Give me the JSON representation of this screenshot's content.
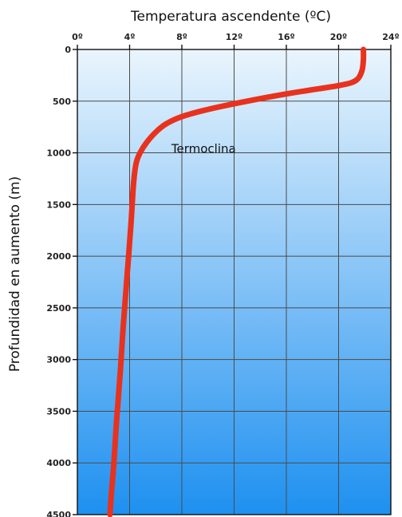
{
  "chart_data": {
    "type": "line",
    "title": "Temperatura ascendente (ºC)",
    "xlabel": "Temperatura ascendente (ºC)",
    "ylabel": "Profundidad en aumento (m)",
    "xlim": [
      0,
      24
    ],
    "ylim": [
      0,
      4500
    ],
    "y_inverted": true,
    "x_axis_position": "top",
    "x_ticks": [
      0,
      4,
      8,
      12,
      16,
      20,
      24
    ],
    "x_tick_labels": [
      "0º",
      "4º",
      "8º",
      "12º",
      "16º",
      "20º",
      "24º"
    ],
    "y_ticks": [
      0,
      500,
      1000,
      1500,
      2000,
      2500,
      3000,
      3500,
      4000,
      4500
    ],
    "y_tick_labels": [
      "0",
      "500",
      "1000",
      "1500",
      "2000",
      "2500",
      "3000",
      "3500",
      "4000",
      "4500"
    ],
    "grid": true,
    "line_color": "#e8321e",
    "background_gradient": [
      "#eaf5fd",
      "#1e90f0"
    ],
    "series": [
      {
        "x": [
          21.9,
          21.9,
          21.8,
          21.5,
          21.0,
          20.0,
          18.5,
          16.0,
          13.0,
          10.0,
          8.0,
          6.8,
          6.0,
          5.3,
          4.8,
          4.5,
          4.3,
          4.1,
          3.8,
          3.5,
          3.3,
          3.0,
          2.8,
          2.6,
          2.5
        ],
        "y": [
          0,
          100,
          200,
          280,
          320,
          350,
          380,
          430,
          500,
          580,
          650,
          720,
          800,
          900,
          1000,
          1100,
          1300,
          1700,
          2200,
          2700,
          3100,
          3600,
          4000,
          4300,
          4500
        ]
      }
    ],
    "annotations": [
      {
        "text": "Termoclina",
        "x": 7.2,
        "y": 1000
      }
    ]
  }
}
